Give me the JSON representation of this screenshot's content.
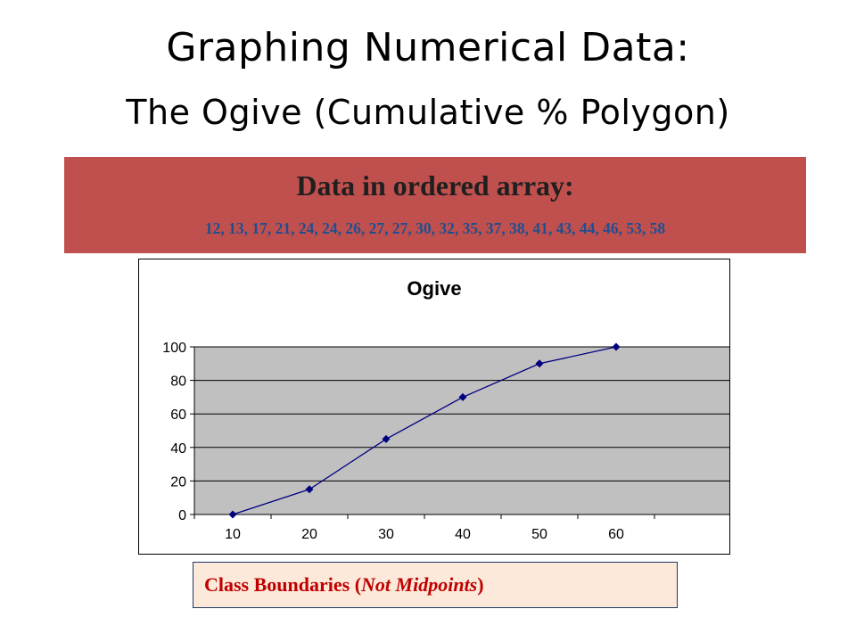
{
  "slide": {
    "title_line1": "Graphing Numerical Data:",
    "title_line2": "The Ogive (Cumulative % Polygon)"
  },
  "data_banner": {
    "heading": "Data in ordered array:",
    "values_text": "12, 13, 17, 21, 24, 24, 26, 27, 27, 30, 32, 35, 37, 38, 41, 43, 44, 46, 53, 58"
  },
  "caption": {
    "prefix": "Class Boundaries (",
    "emphasis": "Not Midpoints",
    "suffix": ")"
  },
  "chart_data": {
    "type": "line",
    "title": "Ogive",
    "xlabel": "",
    "ylabel": "",
    "categories": [
      "10",
      "20",
      "30",
      "40",
      "50",
      "60"
    ],
    "series": [
      {
        "values": [
          0,
          15,
          45,
          70,
          90,
          100
        ],
        "color": "#000080"
      }
    ],
    "ylim": [
      0,
      100
    ],
    "yticks": [
      0,
      20,
      40,
      60,
      80,
      100
    ],
    "grid": true,
    "legend": "none",
    "plot_background": "#c0c0c0"
  }
}
